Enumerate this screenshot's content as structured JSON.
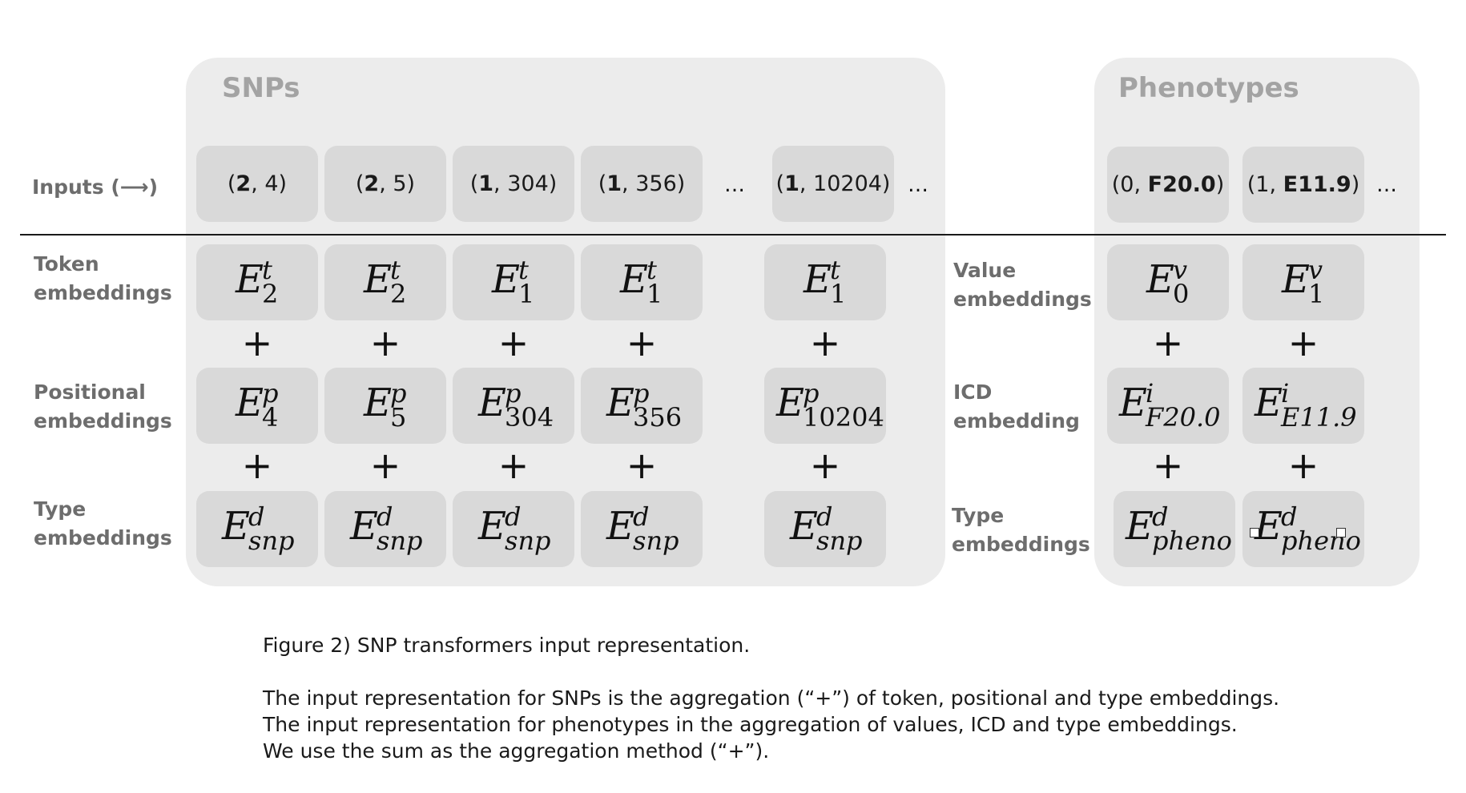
{
  "panels": {
    "snps_title": "SNPs",
    "pheno_title": "Phenotypes"
  },
  "row_labels": {
    "inputs": "Inputs (⟶)",
    "token_1": "Token",
    "token_2": "embeddings",
    "positional_1": "Positional",
    "positional_2": "embeddings",
    "type_1": "Type",
    "type_2": "embeddings",
    "value_1": "Value",
    "value_2": "embeddings",
    "icd_1": "ICD",
    "icd_2": "embedding",
    "ptype_1": "Type",
    "ptype_2": "embeddings"
  },
  "snp_inputs": [
    {
      "bold": "2",
      "rest": ", 4)"
    },
    {
      "bold": "2",
      "rest": ", 5)"
    },
    {
      "bold": "1",
      "rest": ", 304)"
    },
    {
      "bold": "1",
      "rest": ", 356)"
    },
    {
      "bold": "1",
      "rest": ", 10204)"
    }
  ],
  "pheno_inputs": [
    {
      "plain": "(0, ",
      "bold": "F20.0",
      "close": ")"
    },
    {
      "plain": "(1, ",
      "bold": "E11.9",
      "close": ")"
    }
  ],
  "ellipsis": "…",
  "plus": "+",
  "token_embeddings": [
    {
      "base": "E",
      "sup": "t",
      "sub": "2"
    },
    {
      "base": "E",
      "sup": "t",
      "sub": "2"
    },
    {
      "base": "E",
      "sup": "t",
      "sub": "1"
    },
    {
      "base": "E",
      "sup": "t",
      "sub": "1"
    },
    {
      "base": "E",
      "sup": "t",
      "sub": "1"
    }
  ],
  "positional_embeddings": [
    {
      "base": "E",
      "sup": "p",
      "sub": "4"
    },
    {
      "base": "E",
      "sup": "p",
      "sub": "5"
    },
    {
      "base": "E",
      "sup": "p",
      "sub": "304"
    },
    {
      "base": "E",
      "sup": "p",
      "sub": "356"
    },
    {
      "base": "E",
      "sup": "p",
      "sub": "10204"
    }
  ],
  "snp_type_embeddings": [
    {
      "base": "E",
      "sup": "d",
      "sub": "snp"
    },
    {
      "base": "E",
      "sup": "d",
      "sub": "snp"
    },
    {
      "base": "E",
      "sup": "d",
      "sub": "snp"
    },
    {
      "base": "E",
      "sup": "d",
      "sub": "snp"
    },
    {
      "base": "E",
      "sup": "d",
      "sub": "snp"
    }
  ],
  "value_embeddings": [
    {
      "base": "E",
      "sup": "v",
      "sub": "0"
    },
    {
      "base": "E",
      "sup": "v",
      "sub": "1"
    }
  ],
  "icd_embeddings": [
    {
      "base": "E",
      "sup": "i",
      "sub": "F20.0"
    },
    {
      "base": "E",
      "sup": "i",
      "sub": "E11.9"
    }
  ],
  "pheno_type_embeddings": [
    {
      "base": "E",
      "sup": "d",
      "sub": "pheno"
    },
    {
      "base": "E",
      "sup": "d",
      "sub": "pheno"
    }
  ],
  "caption": {
    "title": "Figure 2) SNP transformers input representation.",
    "line1": "The input representation for SNPs is the aggregation (“+”) of token, positional and type embeddings.",
    "line2": "The input representation for phenotypes in the aggregation of values, ICD and type embeddings.",
    "line3": "We use the sum as the aggregation method (“+”)."
  }
}
